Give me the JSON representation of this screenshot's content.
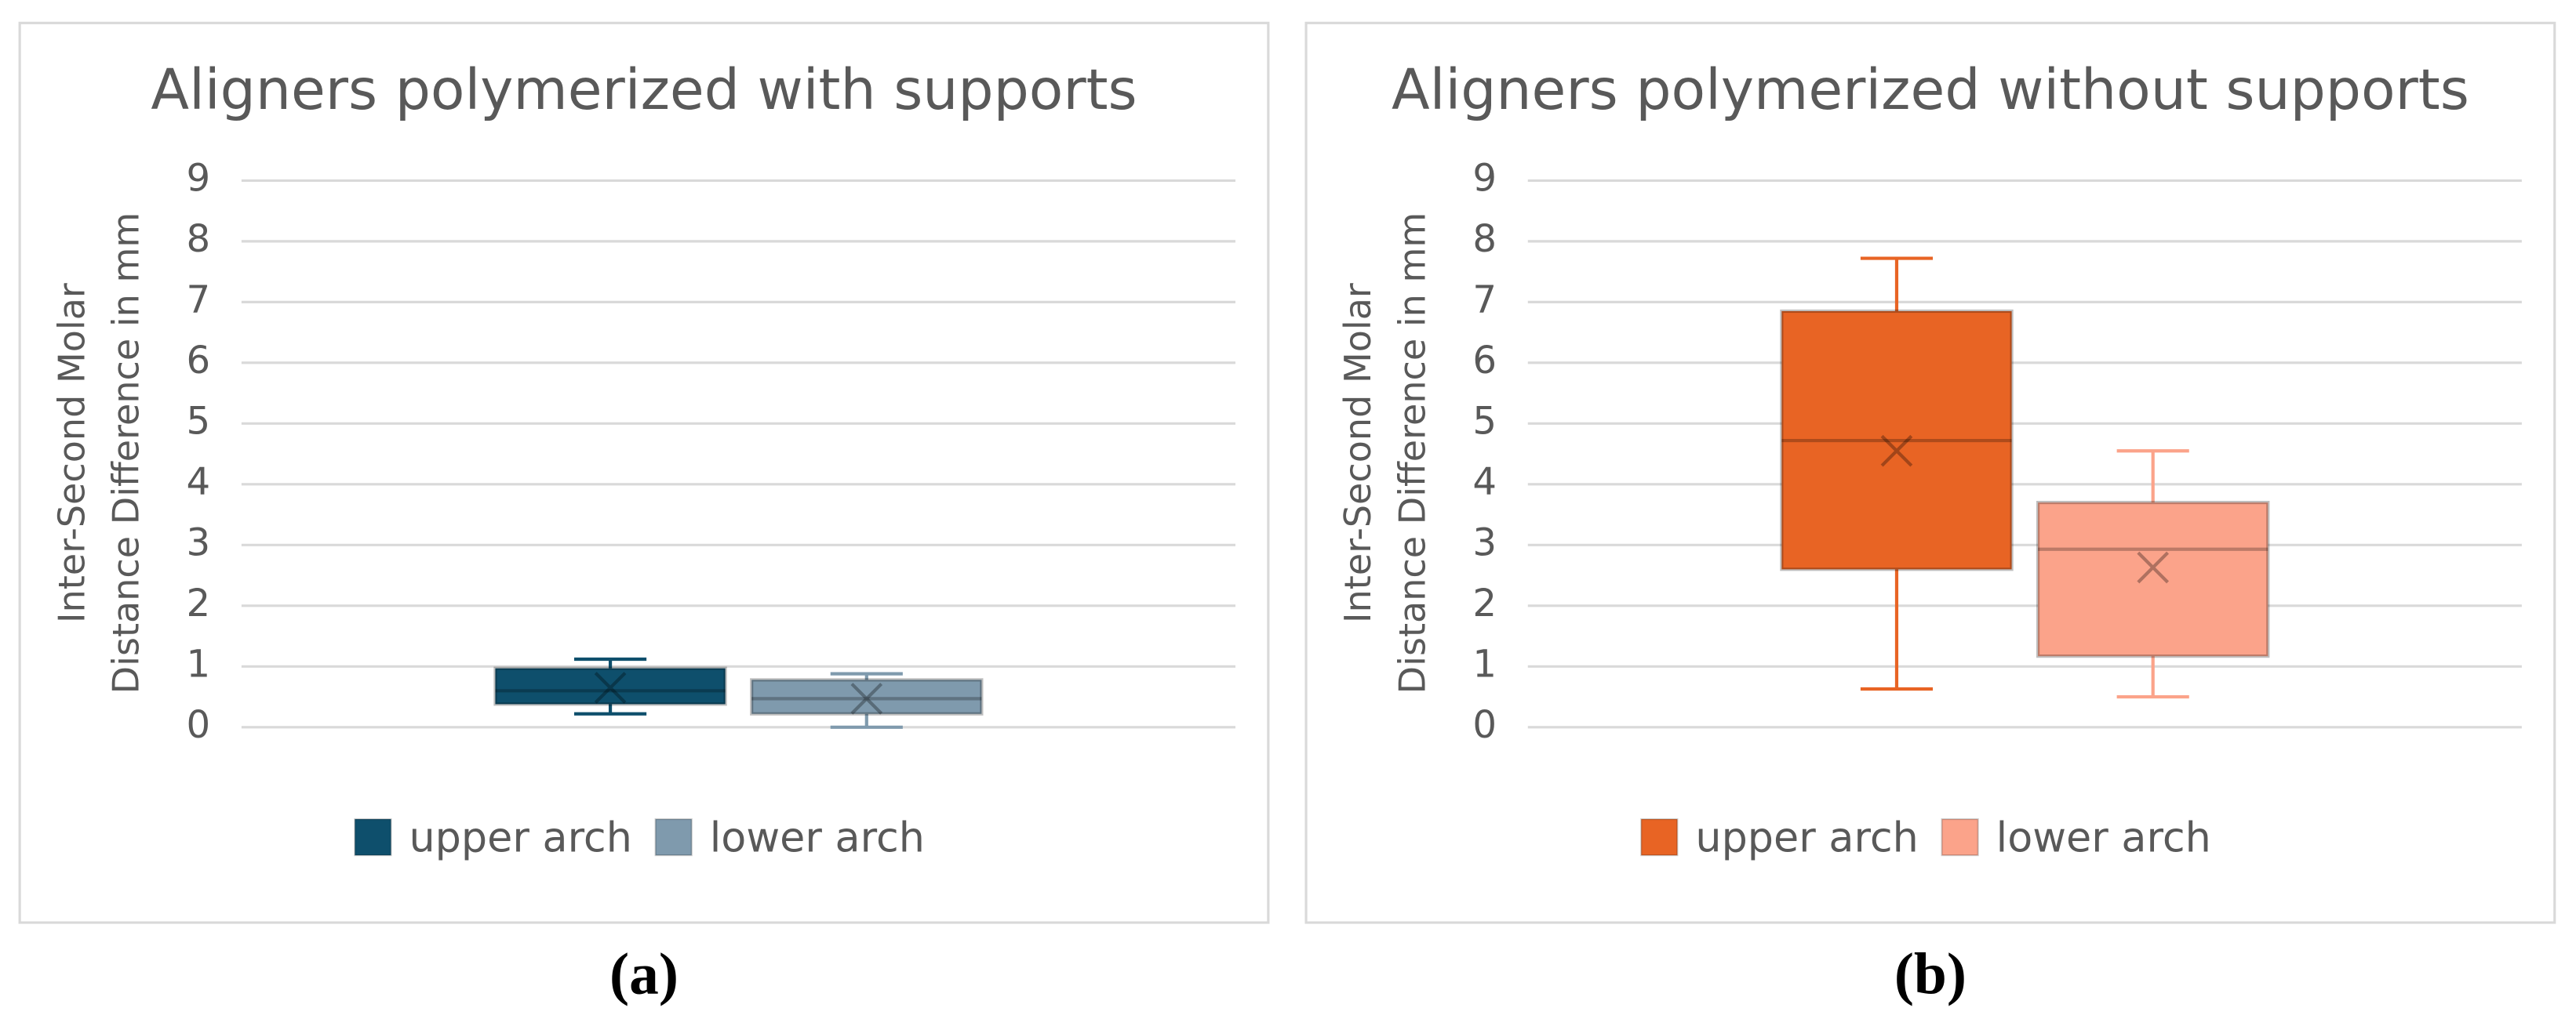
{
  "chart_data": [
    {
      "type": "box",
      "title": "Aligners polymerized with supports",
      "ylabel": [
        "Inter-Second Molar",
        "Distance Difference in mm"
      ],
      "ylim": [
        0,
        9
      ],
      "yticks": [
        0,
        1,
        2,
        3,
        4,
        5,
        6,
        7,
        8,
        9
      ],
      "grid": true,
      "legend": "bottom",
      "panel_label": "(a)",
      "series": [
        {
          "name": "upper arch",
          "color": "#0e4f6c",
          "min": 0.22,
          "q1": 0.38,
          "median": 0.6,
          "q3": 0.97,
          "max": 1.12,
          "mean": 0.65
        },
        {
          "name": "lower arch",
          "color": "#7f9aad",
          "min": 0.0,
          "q1": 0.22,
          "median": 0.47,
          "q3": 0.78,
          "max": 0.88,
          "mean": 0.47
        }
      ]
    },
    {
      "type": "box",
      "title": "Aligners polymerized without supports",
      "ylabel": [
        "Inter-Second Molar",
        "Distance Difference in mm"
      ],
      "ylim": [
        0,
        9
      ],
      "yticks": [
        0,
        1,
        2,
        3,
        4,
        5,
        6,
        7,
        8,
        9
      ],
      "grid": true,
      "legend": "bottom",
      "panel_label": "(b)",
      "series": [
        {
          "name": "upper arch",
          "color": "#e86424",
          "min": 0.63,
          "q1": 2.6,
          "median": 4.72,
          "q3": 6.85,
          "max": 7.72,
          "mean": 4.55
        },
        {
          "name": "lower arch",
          "color": "#fba38a",
          "min": 0.5,
          "q1": 1.17,
          "median": 2.93,
          "q3": 3.7,
          "max": 4.55,
          "mean": 2.63
        }
      ]
    }
  ]
}
